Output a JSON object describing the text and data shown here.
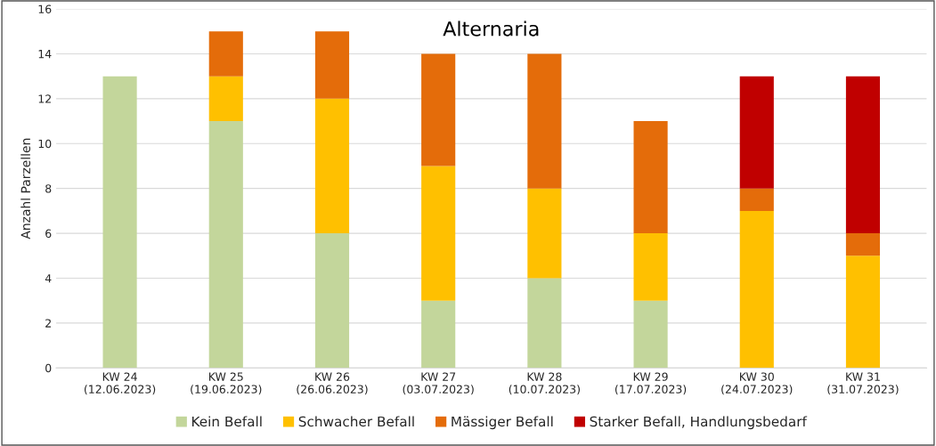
{
  "chart_data": {
    "type": "bar",
    "title": "Alternaria",
    "ylabel": "Anzahl Parzellen",
    "stacked": true,
    "categories": [
      "KW 24\n(12.06.2023)",
      "KW 25\n(19.06.2023)",
      "KW 26\n(26.06.2023)",
      "KW 27\n(03.07.2023)",
      "KW 28\n(10.07.2023)",
      "KW 29\n(17.07.2023)",
      "KW 30\n(24.07.2023)",
      "KW 31\n(31.07.2023)"
    ],
    "series": [
      {
        "name": "Kein Befall",
        "color": "#c3d69b",
        "values": [
          13,
          11,
          6,
          3,
          4,
          3,
          0,
          0
        ]
      },
      {
        "name": "Schwacher Befall",
        "color": "#ffc000",
        "values": [
          0,
          2,
          6,
          6,
          4,
          3,
          7,
          5
        ]
      },
      {
        "name": "Mässiger Befall",
        "color": "#e46c0a",
        "values": [
          0,
          2,
          3,
          5,
          6,
          5,
          1,
          1
        ]
      },
      {
        "name": "Starker Befall, Handlungsbedarf",
        "color": "#c00000",
        "values": [
          0,
          0,
          0,
          0,
          0,
          0,
          5,
          7
        ]
      }
    ],
    "ylim": [
      0,
      16
    ],
    "yticks": [
      0,
      2,
      4,
      6,
      8,
      10,
      12,
      14,
      16
    ],
    "grid": "y",
    "legend": "bottom"
  }
}
